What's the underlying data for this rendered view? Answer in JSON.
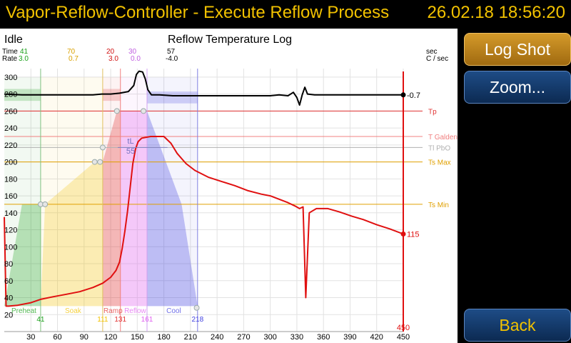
{
  "header": {
    "title": "Vapor-Reflow-Controller - Execute Reflow Process",
    "datetime": "26.02.18   18:56:20"
  },
  "status": "Idle",
  "chart_title": "Reflow Temperature Log",
  "buttons": {
    "log_shot": "Log Shot",
    "zoom": "Zoom...",
    "back": "Back"
  },
  "info_row": {
    "time_label": "Time",
    "rate_label": "Rate",
    "time_unit": "sec",
    "rate_unit": "C / sec",
    "columns": [
      {
        "time": "41",
        "rate": "3.0",
        "color": "#1aa01a"
      },
      {
        "time": "70",
        "rate": "0.7",
        "color": "#d9a000"
      },
      {
        "time": "20",
        "rate": "3.0",
        "color": "#d01010"
      },
      {
        "time": "30",
        "rate": "0.0",
        "color": "#c060e0"
      },
      {
        "time": "57",
        "rate": "-4.0",
        "color": "#000000"
      }
    ]
  },
  "colors": {
    "temperature": "#e01010",
    "rate": "#000000",
    "preheat": "#1aa01a",
    "soak": "#f2c200",
    "ramp": "#e03030",
    "reflow": "#e060f0",
    "cool": "#4040e0",
    "accent": "#f2c200"
  },
  "chart_data": {
    "type": "line",
    "title": "Reflow Temperature Log",
    "xlim": [
      0,
      450
    ],
    "ylim": [
      0,
      310
    ],
    "x_ticks": [
      "30",
      "60",
      "90",
      "120",
      "150",
      "180",
      "210",
      "240",
      "270",
      "300",
      "330",
      "360",
      "390",
      "420",
      "450"
    ],
    "x_tick_values": [
      30,
      60,
      90,
      120,
      150,
      180,
      210,
      240,
      270,
      300,
      330,
      360,
      390,
      420,
      450
    ],
    "y_ticks": [
      "20",
      "40",
      "60",
      "80",
      "100",
      "120",
      "140",
      "160",
      "180",
      "200",
      "220",
      "240",
      "260",
      "280",
      "300"
    ],
    "y_tick_values": [
      20,
      40,
      60,
      80,
      100,
      120,
      140,
      160,
      180,
      200,
      220,
      240,
      260,
      280,
      300
    ],
    "grid": true,
    "threshold_lines": [
      {
        "label": "Tp",
        "value": 260,
        "color": "#e03030"
      },
      {
        "label": "T Galden",
        "value": 230,
        "color": "#f08080"
      },
      {
        "label": "Tl PbO",
        "value": 217,
        "color": "#b0b0b0"
      },
      {
        "label": "Ts Max",
        "value": 200,
        "color": "#e0a000"
      },
      {
        "label": "Ts Min",
        "value": 150,
        "color": "#e0a000"
      }
    ],
    "vertical_lines": [
      {
        "x": 41,
        "color": "#80c080"
      },
      {
        "x": 111,
        "color": "#e0c060"
      },
      {
        "x": 131,
        "color": "#f08080"
      },
      {
        "x": 161,
        "color": "#d0a0f0"
      },
      {
        "x": 218,
        "color": "#8080e0"
      }
    ],
    "zones": [
      {
        "label": "Preheat",
        "x_start": 0,
        "x_end": 41,
        "color": "#1aa01a",
        "time_label": "41"
      },
      {
        "label": "Soak",
        "x_start": 41,
        "x_end": 111,
        "color": "#f2c200",
        "time_label": "111"
      },
      {
        "label": "Ramp",
        "x_start": 111,
        "x_end": 131,
        "color": "#e03030",
        "time_label": "131"
      },
      {
        "label": "Reflow",
        "x_start": 131,
        "x_end": 161,
        "color": "#e060f0",
        "time_label": "161"
      },
      {
        "label": "Cool",
        "x_start": 161,
        "x_end": 218,
        "color": "#4040e0",
        "time_label": "218"
      }
    ],
    "tl_label": "tL",
    "tl_value": "55",
    "cursor": {
      "x": 450,
      "label": "450",
      "temp_label": "115",
      "rate_label": "-0.7"
    },
    "series": [
      {
        "name": "",
        "color": "#e01010",
        "points": [
          [
            0,
            135
          ],
          [
            2,
            30
          ],
          [
            5,
            30
          ],
          [
            15,
            31
          ],
          [
            30,
            34
          ],
          [
            41,
            38
          ],
          [
            55,
            41
          ],
          [
            70,
            44
          ],
          [
            85,
            47
          ],
          [
            100,
            52
          ],
          [
            111,
            57
          ],
          [
            120,
            64
          ],
          [
            126,
            72
          ],
          [
            130,
            82
          ],
          [
            133,
            98
          ],
          [
            136,
            118
          ],
          [
            139,
            142
          ],
          [
            142,
            170
          ],
          [
            145,
            198
          ],
          [
            148,
            215
          ],
          [
            151,
            224
          ],
          [
            155,
            228
          ],
          [
            165,
            230
          ],
          [
            180,
            230
          ],
          [
            188,
            222
          ],
          [
            195,
            210
          ],
          [
            205,
            198
          ],
          [
            215,
            190
          ],
          [
            230,
            182
          ],
          [
            245,
            177
          ],
          [
            260,
            172
          ],
          [
            275,
            166
          ],
          [
            290,
            162
          ],
          [
            300,
            160
          ],
          [
            310,
            156
          ],
          [
            320,
            152
          ],
          [
            328,
            148
          ],
          [
            333,
            145
          ],
          [
            337,
            147
          ],
          [
            340,
            40
          ],
          [
            344,
            140
          ],
          [
            352,
            145
          ],
          [
            365,
            145
          ],
          [
            378,
            141
          ],
          [
            392,
            136
          ],
          [
            405,
            132
          ],
          [
            420,
            126
          ],
          [
            435,
            121
          ],
          [
            450,
            115
          ]
        ]
      },
      {
        "name": "",
        "color": "#000000",
        "y_axis": "rate",
        "points": [
          [
            0,
            280
          ],
          [
            20,
            279
          ],
          [
            40,
            279
          ],
          [
            60,
            279
          ],
          [
            80,
            279
          ],
          [
            100,
            279
          ],
          [
            110,
            280
          ],
          [
            120,
            280
          ],
          [
            130,
            281
          ],
          [
            140,
            283
          ],
          [
            146,
            290
          ],
          [
            149,
            303
          ],
          [
            152,
            307
          ],
          [
            156,
            306
          ],
          [
            159,
            298
          ],
          [
            162,
            285
          ],
          [
            166,
            279
          ],
          [
            175,
            279
          ],
          [
            190,
            278
          ],
          [
            210,
            278
          ],
          [
            240,
            278
          ],
          [
            270,
            278
          ],
          [
            300,
            278
          ],
          [
            310,
            279
          ],
          [
            320,
            278
          ],
          [
            326,
            282
          ],
          [
            330,
            276
          ],
          [
            333,
            267
          ],
          [
            336,
            279
          ],
          [
            339,
            288
          ],
          [
            342,
            280
          ],
          [
            350,
            279
          ],
          [
            370,
            279
          ],
          [
            390,
            279
          ],
          [
            410,
            279
          ],
          [
            430,
            279
          ],
          [
            450,
            279
          ]
        ]
      }
    ]
  }
}
